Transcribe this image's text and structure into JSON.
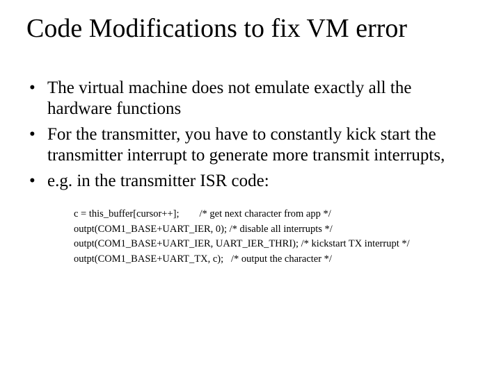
{
  "title": "Code Modifications to fix VM error",
  "bullets": [
    "The virtual machine does not emulate exactly all the hardware functions",
    "For the transmitter, you have to constantly kick start the transmitter interrupt to generate more transmit interrupts,",
    "e.g. in the transmitter ISR code:"
  ],
  "code": [
    "c = this_buffer[cursor++];        /* get next character from app */",
    "outpt(COM1_BASE+UART_IER, 0); /* disable all interrupts */",
    "outpt(COM1_BASE+UART_IER, UART_IER_THRI); /* kickstart TX interrupt */",
    "outpt(COM1_BASE+UART_TX, c);   /* output the character */"
  ],
  "style": {
    "background": "#ffffff",
    "text_color": "#000000",
    "title_fontsize": 38,
    "bullet_fontsize": 25,
    "code_fontsize": 14.5,
    "font_family": "Times New Roman"
  }
}
